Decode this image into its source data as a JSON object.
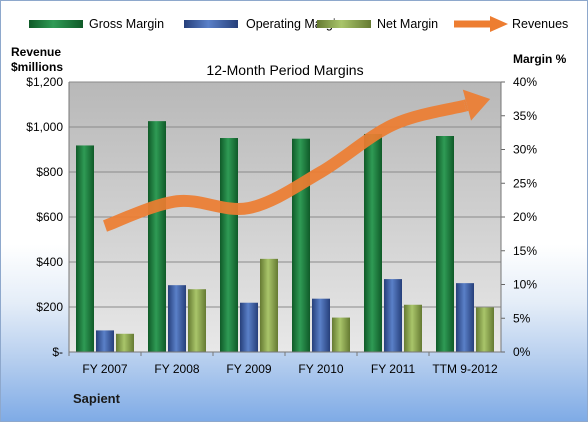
{
  "chart_data": {
    "type": "bar",
    "title": "12-Month Period Margins",
    "company": "Sapient",
    "categories": [
      "FY 2007",
      "FY 2008",
      "FY 2009",
      "FY 2010",
      "FY 2011",
      "TTM 9-2012"
    ],
    "y_left": {
      "label_line1": "Revenue",
      "label_line2": "$millions",
      "min": 0,
      "max": 1200,
      "step": 200,
      "tick_labels": [
        "$-",
        "$200",
        "$400",
        "$600",
        "$800",
        "$1,000",
        "$1,200"
      ]
    },
    "y_right": {
      "label": "Margin %",
      "min": 0,
      "max": 40,
      "step": 5,
      "tick_labels": [
        "0%",
        "5%",
        "10%",
        "15%",
        "20%",
        "25%",
        "30%",
        "35%",
        "40%"
      ]
    },
    "series": [
      {
        "name": "Gross Margin",
        "axis": "right",
        "color": "#1e7a3c",
        "values": [
          30.6,
          34.2,
          31.7,
          31.6,
          32.3,
          32.0
        ]
      },
      {
        "name": "Operating Margin",
        "axis": "right",
        "color": "#3b5fa6",
        "values": [
          3.2,
          9.9,
          7.3,
          7.9,
          10.8,
          10.2
        ]
      },
      {
        "name": "Net Margin",
        "axis": "right",
        "color": "#8fad4f",
        "values": [
          2.7,
          9.3,
          13.8,
          5.1,
          7.0,
          6.6
        ]
      },
      {
        "name": "Revenues",
        "axis": "left",
        "type": "line",
        "color": "#ed7d31",
        "values": [
          560,
          670,
          640,
          800,
          1010,
          1095
        ]
      }
    ],
    "grid": true,
    "legend_position": "top"
  }
}
